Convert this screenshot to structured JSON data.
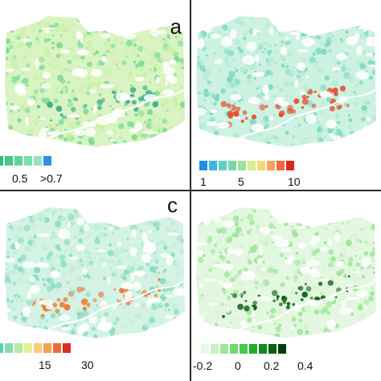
{
  "panels": [
    {
      "letter": "a",
      "legend": {
        "colors": [
          "#2ec07a",
          "#45c986",
          "#62d39a",
          "#7edcac",
          "#99e2bd",
          "#2f8fe3"
        ],
        "labels": [
          "0.5",
          ">0.7"
        ]
      },
      "palette": {
        "dominant": "#7fdc9a",
        "accent": "#3fae8c",
        "edge": "#c9f0a8"
      }
    },
    {
      "letter": "",
      "legend": {
        "colors": [
          "#1f8fe8",
          "#3fb6e8",
          "#5ecfc7",
          "#76d9a8",
          "#9fe39a",
          "#d6ee8c",
          "#f2d77a",
          "#f5a45a",
          "#ef6a3c",
          "#d8291c"
        ],
        "labels": [
          "1",
          "5",
          "10"
        ]
      },
      "palette": {
        "dominant": "#7ed8c6",
        "accent": "#e84a2c",
        "edge": "#b9ecd4"
      }
    },
    {
      "letter": "c",
      "legend": {
        "colors": [
          "#57d3b3",
          "#86dcb2",
          "#b5e8a6",
          "#e3ee95",
          "#f5cf7a",
          "#f4a15a",
          "#ec6b3c",
          "#dd2f1f"
        ],
        "labels": [
          "15",
          "30"
        ]
      },
      "palette": {
        "dominant": "#8adcc4",
        "accent": "#ef7a3a",
        "edge": "#c2eed8"
      }
    },
    {
      "letter": "",
      "legend": {
        "colors": [
          "#e8f8e6",
          "#c9f0c3",
          "#a1e59a",
          "#73d86c",
          "#46c94a",
          "#1fae2c",
          "#0e8a1c",
          "#066312",
          "#033d0a"
        ],
        "labels": [
          "-0.2",
          "0",
          "0.2",
          "0.4"
        ]
      },
      "palette": {
        "dominant": "#9fe69a",
        "accent": "#0b5d14",
        "edge": "#d9f5d4"
      }
    }
  ]
}
